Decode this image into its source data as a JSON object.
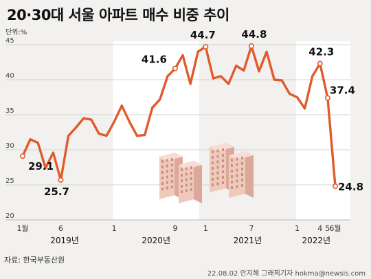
{
  "title": "20·30대 서울 아파트 매수 비중 추이",
  "unit": "단위:%",
  "source": "자료: 한국부동산원",
  "credit": "22.08.02 안지혜 그래픽기자 hokma@newsis.com",
  "colors": {
    "line": "#e05a2b",
    "band": "#ffffff",
    "background": "#f2f1ef"
  },
  "chart_data": {
    "type": "line",
    "ylim": [
      20,
      45
    ],
    "yticks": [
      20,
      25,
      30,
      35,
      40,
      45
    ],
    "x_month_labels": [
      "1월",
      "6",
      "1",
      "9",
      "1",
      "7",
      "1",
      "4",
      "5",
      "6월"
    ],
    "x_year_labels": [
      "2019년",
      "2020년",
      "2021년",
      "2022년"
    ],
    "values": [
      29.1,
      31.5,
      31.0,
      27.4,
      29.6,
      25.7,
      32.0,
      33.2,
      34.5,
      34.3,
      32.3,
      32.0,
      34.0,
      36.3,
      34.0,
      32.0,
      32.1,
      36.0,
      37.2,
      40.5,
      41.6,
      43.5,
      39.4,
      44.0,
      44.7,
      40.2,
      40.5,
      39.4,
      42.0,
      41.3,
      44.8,
      41.2,
      44.0,
      40.0,
      39.9,
      38.0,
      37.5,
      35.9,
      40.5,
      42.3,
      37.4,
      24.8
    ],
    "data_labels": [
      {
        "index": 0,
        "text": "29.1"
      },
      {
        "index": 5,
        "text": "25.7"
      },
      {
        "index": 20,
        "text": "41.6"
      },
      {
        "index": 24,
        "text": "44.7"
      },
      {
        "index": 30,
        "text": "44.8"
      },
      {
        "index": 39,
        "text": "42.3"
      },
      {
        "index": 40,
        "text": "37.4"
      },
      {
        "index": 41,
        "text": "24.8"
      }
    ]
  }
}
